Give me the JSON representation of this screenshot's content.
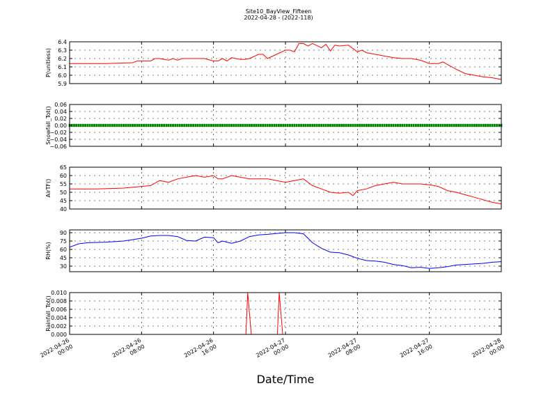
{
  "figure": {
    "title": "Site10_BayView_Fifteen",
    "subtitle": "2022-04-28 - (2022-118)",
    "xlabel": "Date/Time"
  },
  "x_tick_labels": [
    [
      "2022-04-26",
      "00:00"
    ],
    [
      "2022-04-26",
      "08:00"
    ],
    [
      "2022-04-26",
      "16:00"
    ],
    [
      "2022-04-27",
      "00:00"
    ],
    [
      "2022-04-27",
      "08:00"
    ],
    [
      "2022-04-27",
      "16:00"
    ],
    [
      "2022-04-28",
      "00:00"
    ]
  ],
  "chart_data": [
    {
      "type": "line",
      "ylabel": "P(unitless)",
      "ylim": [
        5.9,
        6.4
      ],
      "yticks": [
        "6.4",
        "6.3",
        "6.2",
        "6.1",
        "6.0",
        "5.9"
      ],
      "xlim": [
        "2022-04-26 00:00",
        "2022-04-28 00:00"
      ],
      "grid": true,
      "color": "#ff0000",
      "series": [
        {
          "x_hours": [
            0,
            4,
            7,
            7.5,
            9,
            9.5,
            10,
            11,
            11.5,
            12,
            12.5,
            13,
            14,
            15,
            16,
            16.5,
            17,
            17.5,
            18,
            19,
            19.5,
            20,
            21,
            21.5,
            22,
            23,
            24,
            24.5,
            25,
            25.5,
            26,
            26.5,
            27,
            28,
            28.5,
            29,
            29.5,
            30,
            31,
            32,
            32.5,
            33,
            34,
            35,
            36,
            37,
            38,
            39,
            40,
            41,
            41.5,
            42,
            42.5,
            43,
            44,
            45,
            46,
            47,
            48
          ],
          "y": [
            6.14,
            6.14,
            6.15,
            6.17,
            6.17,
            6.2,
            6.2,
            6.18,
            6.2,
            6.18,
            6.2,
            6.2,
            6.2,
            6.2,
            6.17,
            6.17,
            6.2,
            6.17,
            6.21,
            6.19,
            6.19,
            6.2,
            6.25,
            6.25,
            6.2,
            6.25,
            6.3,
            6.3,
            6.28,
            6.38,
            6.38,
            6.35,
            6.38,
            6.33,
            6.37,
            6.29,
            6.36,
            6.35,
            6.36,
            6.28,
            6.3,
            6.27,
            6.25,
            6.23,
            6.21,
            6.2,
            6.2,
            6.18,
            6.14,
            6.14,
            6.16,
            6.13,
            6.1,
            6.07,
            6.02,
            6.0,
            5.98,
            5.97,
            5.95
          ]
        }
      ]
    },
    {
      "type": "scatter",
      "ylabel": "Snowfall_Tot()",
      "ylim": [
        -0.06,
        0.06
      ],
      "yticks": [
        "0.06",
        "0.04",
        "0.02",
        "0.00",
        "−0.02",
        "−0.04",
        "−0.06"
      ],
      "xlim": [
        "2022-04-26 00:00",
        "2022-04-28 00:00"
      ],
      "grid": true,
      "color": "#008000",
      "series": [
        {
          "x_hours": [
            0,
            48
          ],
          "y": [
            0.0,
            0.0
          ],
          "note_constant": true
        }
      ]
    },
    {
      "type": "line",
      "ylabel": "AirTF()",
      "ylim": [
        40,
        65
      ],
      "yticks": [
        "65",
        "60",
        "55",
        "50",
        "45",
        "40"
      ],
      "xlim": [
        "2022-04-26 00:00",
        "2022-04-28 00:00"
      ],
      "grid": true,
      "color": "#ff0000",
      "series": [
        {
          "x_hours": [
            0,
            3,
            6,
            8,
            9,
            10,
            11,
            12,
            13,
            14,
            15,
            16,
            16.5,
            17,
            18,
            19,
            20,
            22,
            24,
            25,
            26,
            26.5,
            27,
            28,
            29,
            30,
            31,
            31.5,
            32,
            33,
            34,
            35,
            36,
            37,
            38,
            39,
            40,
            41,
            42,
            43,
            44,
            45,
            46,
            47,
            48
          ],
          "y": [
            52,
            52,
            52.5,
            53.5,
            54,
            57,
            56,
            58,
            59,
            60,
            59,
            60,
            58,
            58,
            60,
            59,
            58,
            58,
            56,
            57,
            58,
            56,
            54,
            52,
            50,
            49.5,
            50,
            48,
            51,
            52,
            54,
            55,
            56,
            55,
            55,
            55,
            54.5,
            53.5,
            51,
            50,
            48.5,
            47,
            45.5,
            44,
            43
          ]
        }
      ]
    },
    {
      "type": "line",
      "ylabel": "RH(%)",
      "ylim": [
        20,
        95
      ],
      "yticks": [
        "90",
        "75",
        "60",
        "45",
        "30"
      ],
      "xlim": [
        "2022-04-26 00:00",
        "2022-04-28 00:00"
      ],
      "grid": true,
      "color": "#0000ff",
      "series": [
        {
          "x_hours": [
            0,
            1,
            2,
            4,
            6,
            8,
            9,
            10,
            11,
            12,
            13,
            14,
            15,
            16,
            16.5,
            17,
            18,
            19,
            20,
            21,
            22,
            24,
            25,
            26,
            27,
            28,
            29,
            30,
            31,
            32,
            33,
            34,
            35,
            36,
            37,
            38,
            39,
            40,
            41,
            42,
            43,
            44,
            45,
            46,
            47,
            48
          ],
          "y": [
            64,
            70,
            72,
            73,
            75,
            80,
            84,
            85,
            85,
            83,
            76,
            75,
            82,
            81,
            72,
            75,
            71,
            75,
            83,
            86,
            87,
            90,
            90,
            88,
            72,
            62,
            55,
            54,
            50,
            44,
            40,
            39,
            37,
            33,
            31,
            27,
            28,
            26,
            27,
            29,
            32,
            33,
            34,
            35,
            37,
            38
          ]
        }
      ]
    },
    {
      "type": "line",
      "ylabel": "Rainfall_Tot()",
      "ylim": [
        0,
        0.01
      ],
      "yticks": [
        "0.010",
        "0.008",
        "0.006",
        "0.004",
        "0.002",
        "0.000"
      ],
      "xlim": [
        "2022-04-26 00:00",
        "2022-04-28 00:00"
      ],
      "grid": true,
      "color": "#ff0000",
      "series": [
        {
          "x_hours": [
            0,
            19.6,
            19.8,
            20.2,
            23.1,
            23.3,
            23.7,
            48
          ],
          "y": [
            0,
            0,
            0.01,
            0,
            0,
            0.01,
            0,
            0
          ]
        }
      ]
    }
  ]
}
